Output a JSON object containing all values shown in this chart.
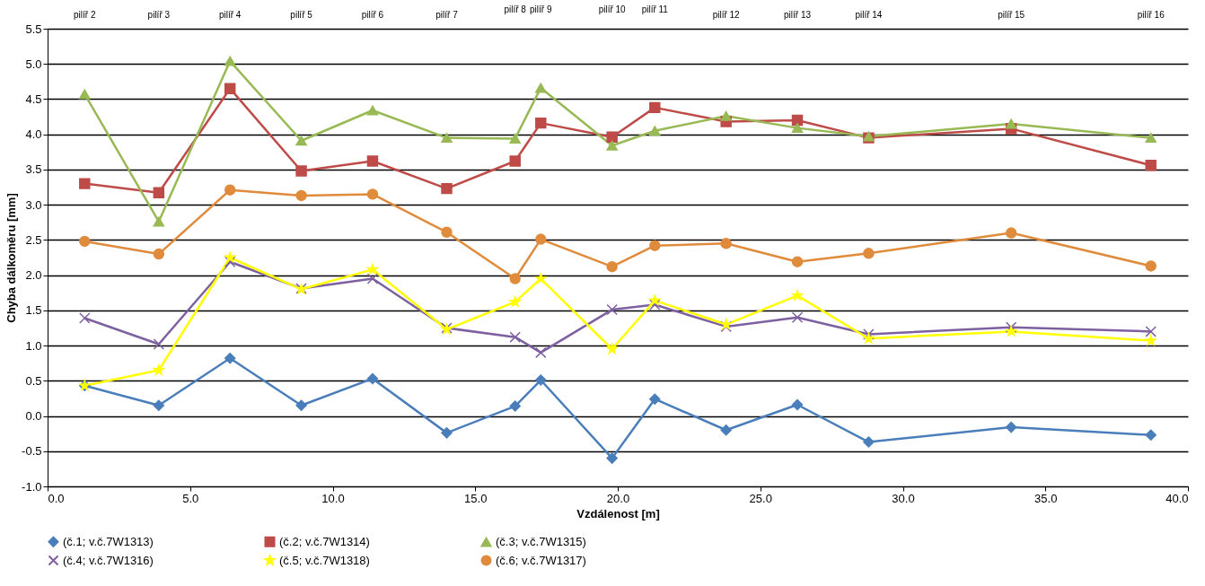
{
  "chart_data": {
    "type": "line",
    "xlabel": "Vzdálenost [m]",
    "ylabel": "Chyba dálkoměru [mm]",
    "x": [
      1.3,
      3.9,
      6.4,
      8.9,
      11.4,
      14.0,
      16.4,
      17.3,
      19.8,
      21.3,
      23.8,
      26.3,
      28.8,
      33.8,
      38.7
    ],
    "xlim": [
      0,
      40
    ],
    "xticks": [
      {
        "value": 0,
        "label": "0.0"
      },
      {
        "value": 5,
        "label": "5.0"
      },
      {
        "value": 10,
        "label": "10.0"
      },
      {
        "value": 15,
        "label": "15.0"
      },
      {
        "value": 20,
        "label": "20.0"
      },
      {
        "value": 25,
        "label": "25.0"
      },
      {
        "value": 30,
        "label": "30.0"
      },
      {
        "value": 35,
        "label": "35.0"
      },
      {
        "value": 40,
        "label": "40.0"
      }
    ],
    "ylim": [
      -1,
      5.5
    ],
    "yticks": [
      {
        "value": -1,
        "label": "-1.0"
      },
      -0.5,
      {
        "value": 0,
        "label": "0.0"
      },
      0.5,
      {
        "value": 1,
        "label": "1.0"
      },
      1.5,
      {
        "value": 2,
        "label": "2.0"
      },
      2.5,
      {
        "value": 3,
        "label": "3.0"
      },
      3.5,
      {
        "value": 4,
        "label": "4.0"
      },
      4.5,
      {
        "value": 5,
        "label": "5.0"
      },
      5.5
    ],
    "grid": "y",
    "legend": "bottom",
    "line_style": "solid",
    "series": [
      {
        "name": "(č.1; v.č.7W1313)",
        "color": "#4a7ebb",
        "marker": "diamond",
        "values": [
          0.43,
          0.15,
          0.82,
          0.15,
          0.53,
          -0.24,
          0.14,
          0.51,
          -0.6,
          0.24,
          -0.2,
          0.16,
          -0.37,
          -0.16,
          -0.27
        ]
      },
      {
        "name": "(č.2; v.č.7W1314)",
        "color": "#be4b48",
        "marker": "square",
        "values": [
          3.3,
          3.17,
          4.65,
          3.48,
          3.62,
          3.23,
          3.62,
          4.16,
          3.96,
          4.38,
          4.18,
          4.2,
          3.95,
          4.08,
          3.56
        ]
      },
      {
        "name": "(č.3; v.č.7W1315)",
        "color": "#98b954",
        "marker": "triangle",
        "values": [
          4.57,
          2.76,
          5.04,
          3.91,
          4.34,
          3.95,
          3.94,
          4.66,
          3.84,
          4.05,
          4.26,
          4.09,
          3.97,
          4.15,
          3.95
        ]
      },
      {
        "name": "(č.4; v.č.7W1316)",
        "color": "#7d60a0",
        "marker": "cross",
        "values": [
          1.39,
          1.02,
          2.19,
          1.81,
          1.95,
          1.25,
          1.12,
          0.9,
          1.51,
          1.58,
          1.27,
          1.4,
          1.16,
          1.26,
          1.2
        ]
      },
      {
        "name": "(č.5; v.č.7W1318)",
        "color": "#ffff00",
        "marker": "star",
        "values": [
          0.43,
          0.65,
          2.25,
          1.8,
          2.08,
          1.23,
          1.62,
          1.95,
          0.95,
          1.64,
          1.3,
          1.71,
          1.1,
          1.2,
          1.07
        ]
      },
      {
        "name": "(č.6; v.č.7W1317)",
        "color": "#e08b3c",
        "marker": "circle",
        "values": [
          2.48,
          2.3,
          3.21,
          3.13,
          3.15,
          2.61,
          1.95,
          2.51,
          2.12,
          2.42,
          2.45,
          2.19,
          2.31,
          2.6,
          2.13
        ]
      }
    ],
    "annotations": [
      "pilíř 2",
      "pilíř 3",
      "pilíř 4",
      "pilíř 5",
      "pilíř 6",
      "pilíř 7",
      "pilíř 8",
      "pilíř 9",
      "pilíř 10",
      "pilíř 11",
      "pilíř 12",
      "pilíř 13",
      "pilíř 14",
      "pilíř 15",
      "pilíř 16"
    ]
  }
}
